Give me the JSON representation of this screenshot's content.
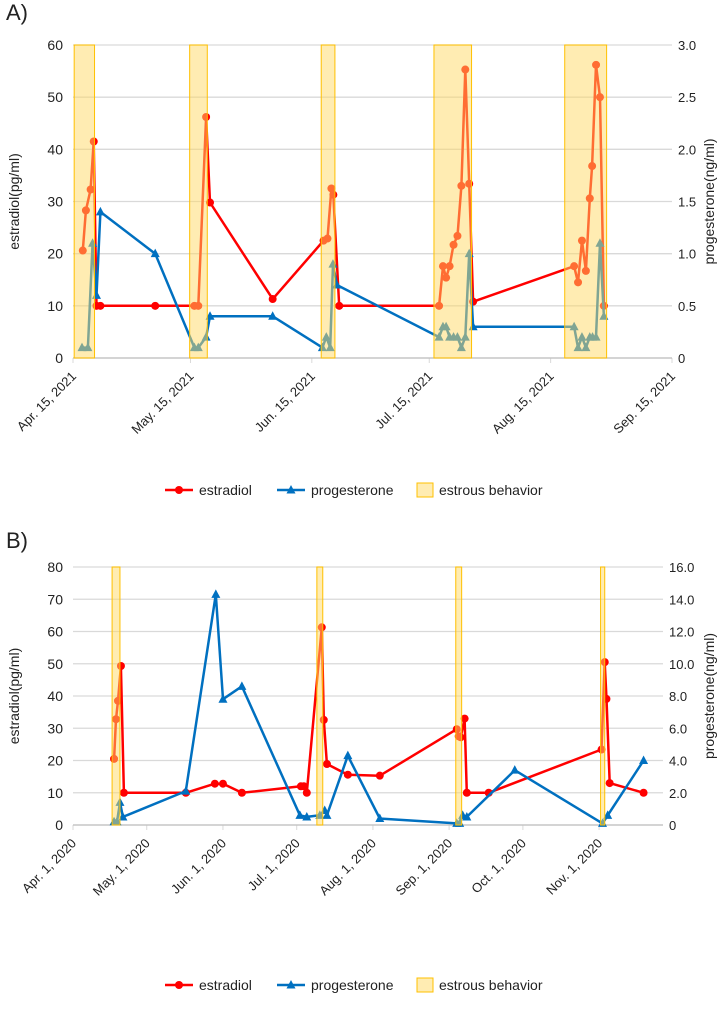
{
  "colors": {
    "estradiol": "#ff0000",
    "progesterone": "#0070c0",
    "band_fill": "#ffd966",
    "band_stroke": "#ffc000",
    "grid": "#d9d9d9"
  },
  "chart_data": [
    {
      "panel_label": "A)",
      "type": "line",
      "x_unit": "days since Apr. 15, 2021",
      "xlim": [
        0,
        153
      ],
      "x_ticks": [
        {
          "day": 0,
          "label": "Apr. 15, 2021"
        },
        {
          "day": 30,
          "label": "May. 15, 2021"
        },
        {
          "day": 61,
          "label": "Jun. 15, 2021"
        },
        {
          "day": 91,
          "label": "Jul. 15, 2021"
        },
        {
          "day": 122,
          "label": "Aug. 15, 2021"
        },
        {
          "day": 153,
          "label": "Sep. 15, 2021"
        }
      ],
      "ylabel": "estradiol(pg/ml)",
      "ylim": [
        0,
        60
      ],
      "y_ticks": [
        "0",
        "10",
        "20",
        "30",
        "40",
        "50",
        "60"
      ],
      "y2label": "progesterone(ng/ml)",
      "y2lim": [
        0,
        3
      ],
      "y2_ticks": [
        "0",
        "0.5",
        "1.0",
        "1.5",
        "2.0",
        "2.5",
        "3.0"
      ],
      "legend": [
        "estradiol",
        "progesterone",
        "estrous behavior"
      ],
      "legend_position": "bottom",
      "grid": true,
      "estrous_behavior": [
        [
          0.3,
          5.5
        ],
        [
          29.8,
          34.3
        ],
        [
          63.4,
          66.9
        ],
        [
          92.2,
          101.8
        ],
        [
          125.6,
          136.3
        ]
      ],
      "series": [
        {
          "name": "estradiol",
          "axis": "left",
          "marker": "circle",
          "x": [
            2.5,
            3.3,
            4.5,
            5.3,
            6,
            7,
            21,
            31,
            32,
            34,
            35,
            51,
            64,
            65,
            66,
            66.5,
            68,
            93.5,
            94.5,
            95.3,
            96.2,
            97.2,
            98.2,
            99.2,
            100.2,
            101.2,
            102.2,
            128,
            129,
            130,
            131,
            132,
            132.6,
            133.6,
            134.6,
            135.6
          ],
          "y": [
            20.6,
            28.3,
            32.3,
            41.5,
            10,
            10,
            10,
            10,
            10,
            46.2,
            29.8,
            11.3,
            22.5,
            22.9,
            32.5,
            31.3,
            10,
            10,
            17.6,
            15.4,
            17.6,
            21.7,
            23.4,
            33,
            55.3,
            33.4,
            10.8,
            17.6,
            14.5,
            22.5,
            16.7,
            30.6,
            36.8,
            56.2,
            50,
            10
          ]
        },
        {
          "name": "progesterone",
          "axis": "right",
          "marker": "triangle",
          "x": [
            2.3,
            3.8,
            5,
            6,
            7,
            21,
            31,
            32,
            34,
            35,
            51,
            63.7,
            64.7,
            65.7,
            66.4,
            67.4,
            93.5,
            94.5,
            95.3,
            96.2,
            97.2,
            98.2,
            99.2,
            100.2,
            101.2,
            102.2,
            128,
            129,
            130,
            131,
            132,
            132.7,
            133.6,
            134.6,
            135.6
          ],
          "y": [
            0.1,
            0.1,
            1.1,
            0.6,
            1.4,
            1.0,
            0.1,
            0.1,
            0.2,
            0.4,
            0.4,
            0.1,
            0.2,
            0.1,
            0.9,
            0.7,
            0.2,
            0.3,
            0.3,
            0.2,
            0.2,
            0.2,
            0.1,
            0.2,
            1.0,
            0.3,
            0.3,
            0.1,
            0.2,
            0.1,
            0.2,
            0.2,
            0.2,
            1.1,
            0.4
          ]
        }
      ]
    },
    {
      "panel_label": "B)",
      "type": "line",
      "x_unit": "days since Apr. 1, 2020",
      "xlim": [
        0,
        240
      ],
      "x_ticks": [
        {
          "day": 0,
          "label": "Apr. 1, 2020"
        },
        {
          "day": 30,
          "label": "May. 1, 2020"
        },
        {
          "day": 61,
          "label": "Jun. 1, 2020"
        },
        {
          "day": 91,
          "label": "Jul. 1, 2020"
        },
        {
          "day": 122,
          "label": "Aug. 1, 2020"
        },
        {
          "day": 153,
          "label": "Sep. 1, 2020"
        },
        {
          "day": 183,
          "label": "Oct. 1, 2020"
        },
        {
          "day": 214,
          "label": "Nov. 1, 2020"
        }
      ],
      "ylabel": "estradiol(pg/ml)",
      "ylim": [
        0,
        80
      ],
      "y_ticks": [
        "0",
        "10",
        "20",
        "30",
        "40",
        "50",
        "60",
        "70",
        "80"
      ],
      "y2label": "progesterone(ng/ml)",
      "y2lim": [
        0,
        16
      ],
      "y2_ticks": [
        "0",
        "2.0",
        "4.0",
        "6.0",
        "8.0",
        "10.0",
        "12.0",
        "14.0",
        "16.0"
      ],
      "legend": [
        "estradiol",
        "progesterone",
        "estrous behavior"
      ],
      "legend_position": "bottom",
      "grid": true,
      "estrous_behavior": [
        [
          15.9,
          19.1
        ],
        [
          99.2,
          101.6
        ],
        [
          155.7,
          158.1
        ],
        [
          214.6,
          216.3
        ]
      ],
      "series": [
        {
          "name": "estradiol",
          "axis": "left",
          "marker": "circle",
          "x": [
            16.7,
            17.5,
            18.3,
            19.5,
            20.7,
            45.9,
            57.7,
            61,
            68.7,
            92.7,
            93.9,
            95.1,
            101.2,
            102,
            103.3,
            111.8,
            124.8,
            156.1,
            156.9,
            157.7,
            159.3,
            160.2,
            169.1,
            215,
            216.3,
            217,
            218.3,
            232.1
          ],
          "y": [
            20.5,
            32.8,
            38.5,
            49.3,
            10,
            10,
            12.8,
            12.8,
            10,
            12,
            12,
            10,
            61.3,
            32.6,
            18.9,
            15.6,
            15.3,
            29.7,
            27.5,
            27.2,
            33,
            10,
            10,
            23.4,
            50.5,
            39.1,
            13,
            10
          ]
        },
        {
          "name": "progesterone",
          "axis": "right",
          "marker": "triangle",
          "x": [
            16.7,
            17.9,
            19.1,
            20.3,
            45.9,
            58.1,
            61,
            68.7,
            92.3,
            95.1,
            100.4,
            102.4,
            103.3,
            111.8,
            124.8,
            156.1,
            157.3,
            158.5,
            160.2,
            179.7,
            215.4,
            217.5,
            232.1
          ],
          "y": [
            0.2,
            0.2,
            1.4,
            0.5,
            2.1,
            14.3,
            7.8,
            8.6,
            0.6,
            0.5,
            0.6,
            0.9,
            0.6,
            4.3,
            0.4,
            0.1,
            0.1,
            0.6,
            0.5,
            3.4,
            0.1,
            0.6,
            4.0
          ]
        }
      ]
    }
  ]
}
